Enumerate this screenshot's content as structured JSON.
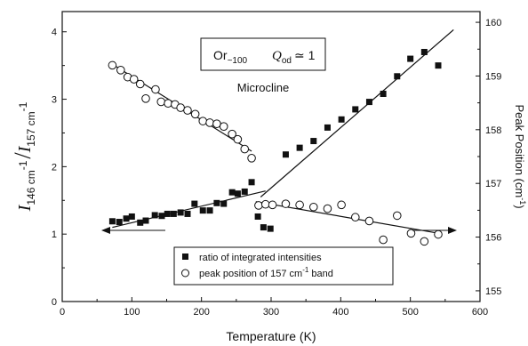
{
  "chart_data": {
    "type": "scatter",
    "xlabel": "Temperature  (K)",
    "xlim": [
      0,
      600
    ],
    "x_ticks": [
      "0",
      "100",
      "200",
      "300",
      "400",
      "500",
      "600"
    ],
    "ylabel_left": {
      "base": "I",
      "sub1": "146 cm",
      "sup1": "-1",
      "sep": "/",
      "base2": "I",
      "sub2": "157 cm",
      "sup2": "-1"
    },
    "ylim_left": [
      0,
      4.3
    ],
    "y_left_ticks": [
      "0",
      "1",
      "2",
      "3",
      "4"
    ],
    "ylabel_right": {
      "text": "Peak Position (cm",
      "sup": "-1",
      "close": ")"
    },
    "ylim_right": [
      154.8,
      160.2
    ],
    "y_right_ticks": [
      "155",
      "156",
      "157",
      "158",
      "159",
      "160"
    ],
    "annotation": {
      "or": "Or",
      "or_sub": "~100",
      "q": "Q",
      "q_sub": "od",
      "q_val": "≃ 1",
      "mineral": "Microcline"
    },
    "legend": {
      "placement": "bottom-center",
      "entries": [
        {
          "marker": "filled-square",
          "text": "ratio of integrated intensities"
        },
        {
          "marker": "open-circle",
          "text": "peak position of 157 cm",
          "sup": "-1",
          "suffix": " band"
        }
      ]
    },
    "arrows": [
      {
        "direction": "left",
        "axis": "left"
      },
      {
        "direction": "right",
        "axis": "right"
      }
    ],
    "series": [
      {
        "marker": "filled-square",
        "axis": "left",
        "x": [
          72,
          82,
          92,
          100,
          112,
          120,
          133,
          143,
          151,
          160,
          170,
          180,
          190,
          202,
          212,
          222,
          232,
          244,
          252,
          262,
          272,
          281,
          289,
          299,
          321,
          341,
          361,
          381,
          401,
          421,
          441,
          461,
          481,
          500,
          520,
          540
        ],
        "y": [
          1.19,
          1.18,
          1.23,
          1.26,
          1.17,
          1.2,
          1.28,
          1.27,
          1.3,
          1.3,
          1.32,
          1.3,
          1.45,
          1.35,
          1.35,
          1.46,
          1.45,
          1.62,
          1.6,
          1.63,
          1.77,
          1.26,
          1.1,
          1.08,
          2.18,
          2.28,
          2.38,
          2.58,
          2.7,
          2.85,
          2.96,
          3.08,
          3.34,
          3.6,
          3.7,
          3.5
        ]
      },
      {
        "marker": "open-circle",
        "axis": "right",
        "x": [
          72,
          84,
          94,
          103,
          112,
          120,
          134,
          142,
          152,
          162,
          170,
          180,
          191,
          202,
          212,
          222,
          232,
          244,
          252,
          262,
          272,
          282,
          292,
          302,
          321,
          341,
          361,
          381,
          401,
          421,
          441,
          461,
          481,
          501,
          520,
          540
        ],
        "y": [
          159.2,
          159.11,
          158.98,
          158.94,
          158.85,
          158.58,
          158.75,
          158.52,
          158.49,
          158.47,
          158.41,
          158.36,
          158.29,
          158.16,
          158.13,
          158.11,
          158.06,
          157.92,
          157.82,
          157.64,
          157.47,
          156.59,
          156.61,
          156.6,
          156.62,
          156.6,
          156.56,
          156.53,
          156.6,
          156.37,
          156.3,
          155.95,
          156.4,
          156.07,
          155.92,
          156.05
        ]
      }
    ],
    "fit_lines": [
      {
        "axis": "left",
        "x": [
          72,
          292
        ],
        "y": [
          1.1,
          1.64
        ]
      },
      {
        "axis": "left",
        "x": [
          285,
          562
        ],
        "y": [
          1.55,
          4.03
        ]
      },
      {
        "axis": "right",
        "x": [
          72,
          272
        ],
        "y": [
          159.22,
          157.6
        ]
      },
      {
        "axis": "right",
        "x": [
          278,
          541
        ],
        "y": [
          156.66,
          156.07
        ]
      }
    ]
  }
}
